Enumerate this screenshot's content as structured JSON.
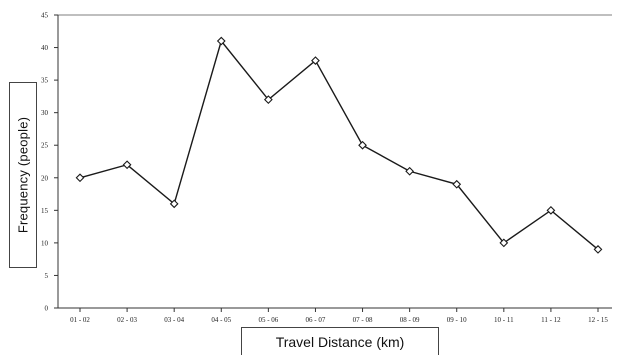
{
  "chart_data": {
    "type": "line",
    "categories": [
      "01 - 02",
      "02 - 03",
      "03 - 04",
      "04 - 05",
      "05 - 06",
      "06 - 07",
      "07 - 08",
      "08 - 09",
      "09 - 10",
      "10 - 11",
      "11 - 12",
      "12 - 15"
    ],
    "series": [
      {
        "values": [
          20,
          22,
          16,
          41,
          32,
          38,
          25,
          21,
          19,
          10,
          15,
          9
        ]
      }
    ],
    "yticks": [
      "0",
      "5",
      "10",
      "15",
      "20",
      "25",
      "30",
      "35",
      "40",
      "45"
    ],
    "ylim": [
      0,
      45
    ],
    "xlabel": "Travel Distance (km)",
    "ylabel": "Frequency (people)",
    "grid": false,
    "legend": "none",
    "marker": "diamond",
    "colors": {
      "line": "#1a1a1a",
      "axis": "#333333",
      "plot_top_border": "#999999"
    }
  }
}
